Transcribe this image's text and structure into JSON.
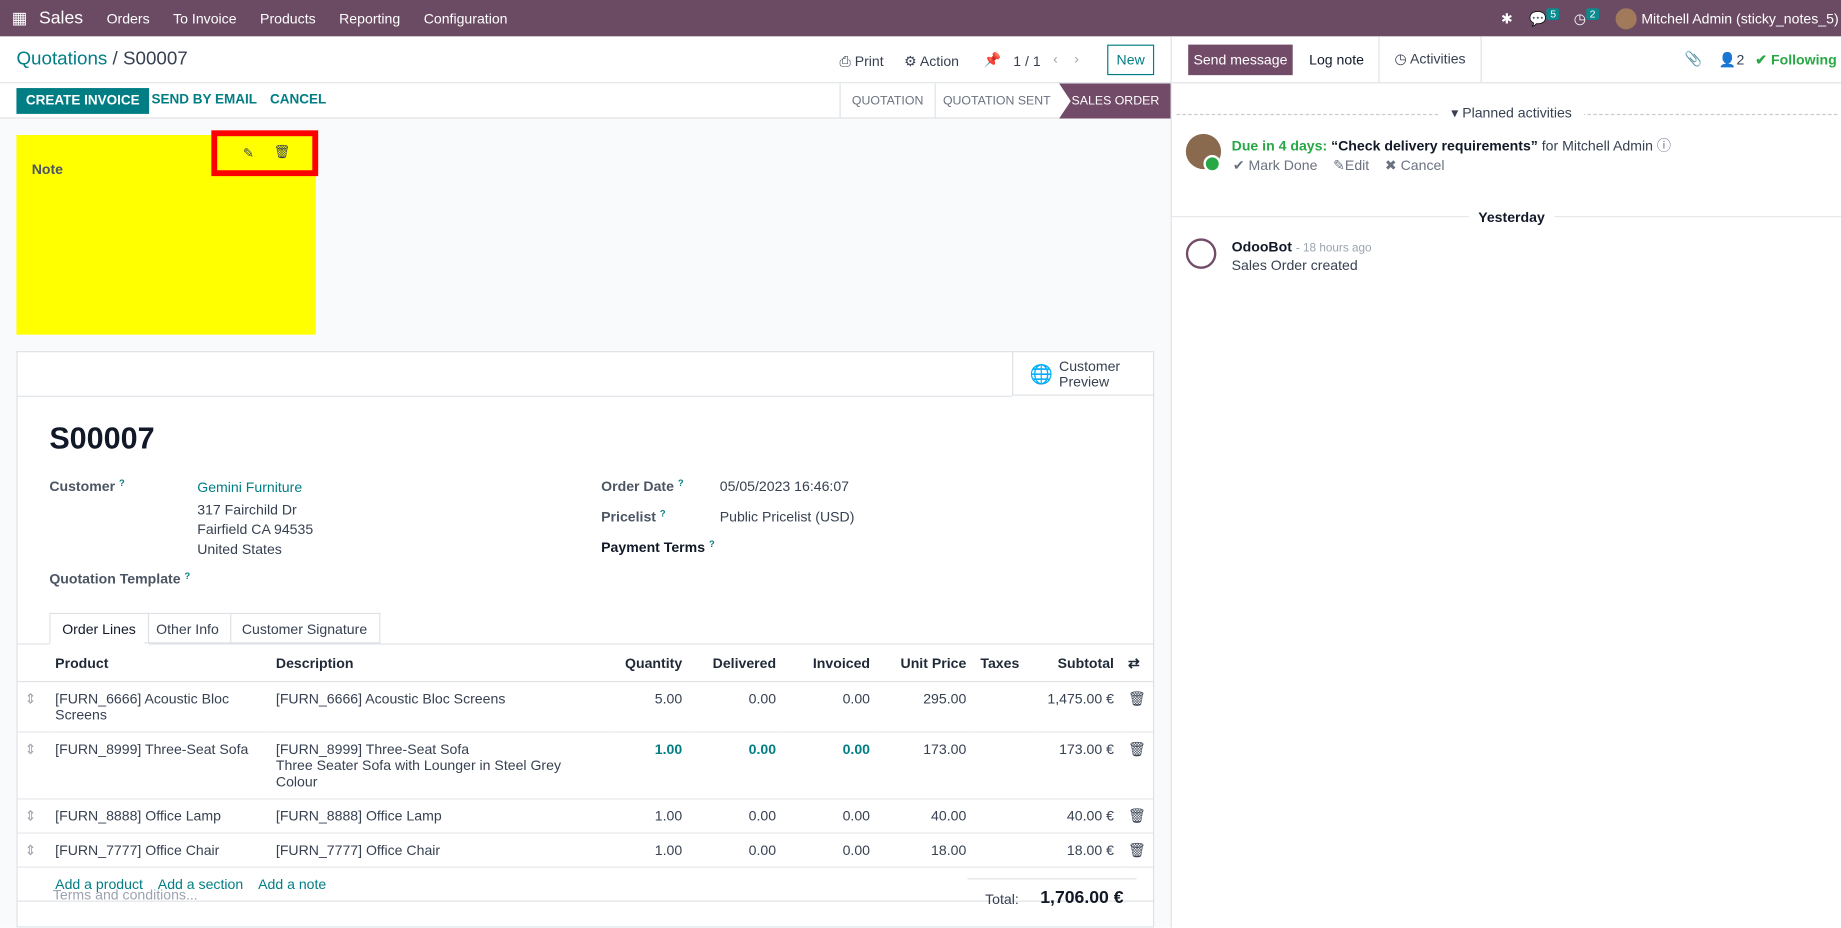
{
  "navbar": {
    "app": "Sales",
    "menu": [
      "Orders",
      "To Invoice",
      "Products",
      "Reporting",
      "Configuration"
    ],
    "messages_count": "5",
    "activities_count": "2",
    "user": "Mitchell Admin (sticky_notes_5)"
  },
  "control": {
    "breadcrumb_parent": "Quotations",
    "breadcrumb_current": "S00007",
    "print": "Print",
    "action": "Action",
    "pager": "1 / 1",
    "new": "New"
  },
  "status": {
    "buttons": [
      "CREATE INVOICE",
      "SEND BY EMAIL",
      "CANCEL"
    ],
    "steps": [
      "QUOTATION",
      "QUOTATION SENT",
      "SALES ORDER"
    ]
  },
  "sticky": {
    "title": "Note",
    "color": "#ffff00"
  },
  "form": {
    "customer_preview": "Customer Preview",
    "name": "S00007",
    "customer_label": "Customer",
    "customer": "Gemini Furniture",
    "address": [
      "317 Fairchild Dr",
      "Fairfield CA 94535",
      "United States"
    ],
    "template_label": "Quotation Template",
    "order_date_label": "Order Date",
    "order_date": "05/05/2023 16:46:07",
    "pricelist_label": "Pricelist",
    "pricelist": "Public Pricelist (USD)",
    "payment_terms_label": "Payment Terms",
    "tabs": [
      "Order Lines",
      "Other Info",
      "Customer Signature"
    ],
    "columns": [
      "Product",
      "Description",
      "Quantity",
      "Delivered",
      "Invoiced",
      "Unit Price",
      "Taxes",
      "Subtotal"
    ],
    "lines": [
      {
        "product": "[FURN_6666] Acoustic Bloc Screens",
        "description": "[FURN_6666] Acoustic Bloc Screens",
        "description2": "",
        "qty": "5.00",
        "delivered": "0.00",
        "invoiced": "0.00",
        "price": "295.00",
        "subtotal": "1,475.00 €"
      },
      {
        "product": "[FURN_8999] Three-Seat Sofa",
        "description": "[FURN_8999] Three-Seat Sofa",
        "description2": "Three Seater Sofa with Lounger in Steel Grey Colour",
        "qty": "1.00",
        "delivered": "0.00",
        "invoiced": "0.00",
        "price": "173.00",
        "subtotal": "173.00 €"
      },
      {
        "product": "[FURN_8888] Office Lamp",
        "description": "[FURN_8888] Office Lamp",
        "description2": "",
        "qty": "1.00",
        "delivered": "0.00",
        "invoiced": "0.00",
        "price": "40.00",
        "subtotal": "40.00 €"
      },
      {
        "product": "[FURN_7777] Office Chair",
        "description": "[FURN_7777] Office Chair",
        "description2": "",
        "qty": "1.00",
        "delivered": "0.00",
        "invoiced": "0.00",
        "price": "18.00",
        "subtotal": "18.00 €"
      }
    ],
    "add_links": [
      "Add a product",
      "Add a section",
      "Add a note"
    ],
    "terms_placeholder": "Terms and conditions...",
    "total_label": "Total:",
    "total": "1,706.00 €"
  },
  "chatter": {
    "send_message": "Send message",
    "log_note": "Log note",
    "activities": "Activities",
    "followers": "2",
    "following": "Following",
    "planned": "Planned activities",
    "due": "Due in 4 days:",
    "activity": "“Check delivery requirements”",
    "for": "for Mitchell Admin",
    "mark_done": "Mark Done",
    "edit": "Edit",
    "cancel": "Cancel",
    "date_sep": "Yesterday",
    "author": "OdooBot",
    "time": "- 18 hours ago",
    "message": "Sales Order created"
  }
}
